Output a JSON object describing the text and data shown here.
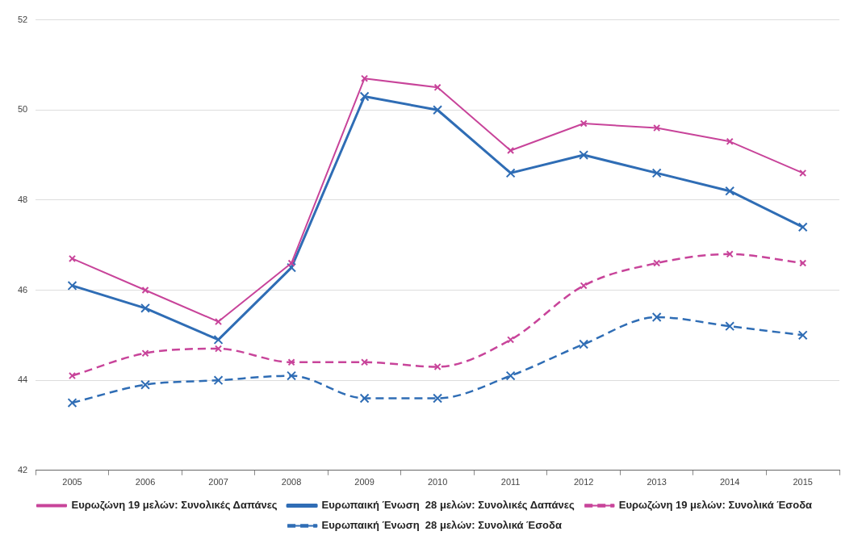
{
  "chart_data": {
    "type": "line",
    "categories": [
      "2005",
      "2006",
      "2007",
      "2008",
      "2009",
      "2010",
      "2011",
      "2012",
      "2013",
      "2014",
      "2015"
    ],
    "series": [
      {
        "name": "Ευρωζώνη 19 μελών: Συνολικές Δαπάνες",
        "color": "#c8449a",
        "line_style": "solid",
        "values": [
          46.7,
          46.0,
          45.3,
          46.6,
          50.7,
          50.5,
          49.1,
          49.7,
          49.6,
          49.3,
          48.6
        ]
      },
      {
        "name": "Ευρωπαική Ένωση  28 μελών: Συνολικές Δαπάνες",
        "color": "#2f6db5",
        "line_style": "solid",
        "values": [
          46.1,
          45.6,
          44.9,
          46.5,
          50.3,
          50.0,
          48.6,
          49.0,
          48.6,
          48.2,
          47.4
        ]
      },
      {
        "name": "Ευρωζώνη 19 μελών: Συνολικά Έσοδα",
        "color": "#c8449a",
        "line_style": "dashed",
        "values": [
          44.1,
          44.6,
          44.7,
          44.4,
          44.4,
          44.3,
          44.9,
          46.1,
          46.6,
          46.8,
          46.6
        ]
      },
      {
        "name": "Ευρωπαική Ένωση  28 μελών: Συνολικά Έσοδα",
        "color": "#2f6db5",
        "line_style": "dashed",
        "values": [
          43.5,
          43.9,
          44.0,
          44.1,
          43.6,
          43.6,
          44.1,
          44.8,
          45.4,
          45.2,
          45.0
        ]
      }
    ],
    "ylim": [
      42,
      52
    ],
    "yticks": [
      42,
      44,
      46,
      48,
      50,
      52
    ],
    "grid": "y",
    "legend": "bottom",
    "marker": "cross"
  }
}
